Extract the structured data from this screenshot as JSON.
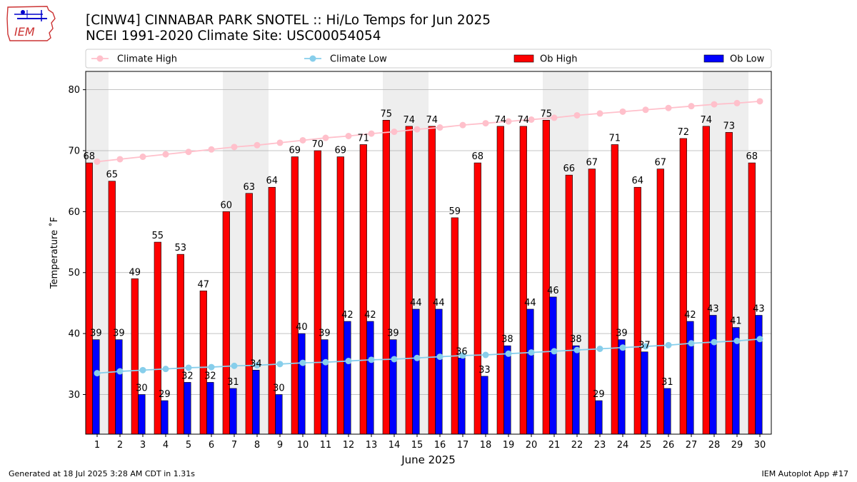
{
  "header": {
    "title": "[CINW4] CINNABAR PARK SNOTEL :: Hi/Lo Temps for Jun 2025",
    "subtitle": "NCEI 1991-2020 Climate Site: USC00054054",
    "logo_text": "IEM"
  },
  "footer": {
    "generated": "Generated at 18 Jul 2025 3:28 AM CDT in 1.31s",
    "app": "IEM Autoplot App #17"
  },
  "chart_data": {
    "type": "bar",
    "xlabel": "June 2025",
    "ylabel": "Temperature ˚F",
    "ylim": [
      23.5,
      83
    ],
    "yticks": [
      30,
      40,
      50,
      60,
      70,
      80
    ],
    "grid": true,
    "legend_position": "top",
    "categories": [
      "1",
      "2",
      "3",
      "4",
      "5",
      "6",
      "7",
      "8",
      "9",
      "10",
      "11",
      "12",
      "13",
      "14",
      "15",
      "16",
      "17",
      "18",
      "19",
      "20",
      "21",
      "22",
      "23",
      "24",
      "25",
      "26",
      "27",
      "28",
      "29",
      "30"
    ],
    "weekend_days": [
      1,
      7,
      8,
      14,
      15,
      21,
      22,
      28,
      29
    ],
    "series": [
      {
        "name": "Climate High",
        "kind": "line",
        "color": "#ffc0cb",
        "values": [
          68.2,
          68.6,
          69.0,
          69.4,
          69.8,
          70.2,
          70.6,
          70.9,
          71.3,
          71.7,
          72.1,
          72.4,
          72.8,
          73.1,
          73.5,
          73.8,
          74.2,
          74.5,
          74.8,
          75.1,
          75.4,
          75.8,
          76.1,
          76.4,
          76.7,
          77.0,
          77.3,
          77.6,
          77.8,
          78.1
        ]
      },
      {
        "name": "Climate Low",
        "kind": "line",
        "color": "#87ceeb",
        "values": [
          33.5,
          33.8,
          34.0,
          34.2,
          34.4,
          34.5,
          34.7,
          34.8,
          35.0,
          35.2,
          35.3,
          35.5,
          35.7,
          35.8,
          36.0,
          36.2,
          36.4,
          36.5,
          36.7,
          36.9,
          37.1,
          37.3,
          37.5,
          37.7,
          37.9,
          38.1,
          38.4,
          38.6,
          38.8,
          39.1
        ]
      },
      {
        "name": "Ob High",
        "kind": "bar",
        "color": "#ff0000",
        "values": [
          68,
          65,
          49,
          55,
          53,
          47,
          60,
          63,
          64,
          69,
          70,
          69,
          71,
          75,
          74,
          74,
          59,
          68,
          74,
          74,
          75,
          66,
          67,
          71,
          64,
          67,
          72,
          74,
          73,
          68
        ],
        "labels": [
          "68",
          "65",
          "49",
          "55",
          "53",
          "47",
          "60",
          "63",
          "64",
          "69",
          "70",
          "69",
          "71",
          "75",
          "74",
          "74",
          "59",
          "68",
          "74",
          "74",
          "75",
          "66",
          "67",
          "71",
          "64",
          "67",
          "72",
          "74",
          "73",
          "68"
        ]
      },
      {
        "name": "Ob Low",
        "kind": "bar",
        "color": "#0000ff",
        "values": [
          39,
          39,
          30,
          29,
          32,
          32,
          31,
          34,
          30,
          40,
          39,
          42,
          42,
          39,
          44,
          44,
          36,
          33,
          38,
          44,
          46,
          38,
          29,
          39,
          37,
          31,
          42,
          43,
          41,
          43
        ],
        "labels": [
          "39",
          "39",
          "30",
          "29",
          "32",
          "32",
          "31",
          "34",
          "30",
          "40",
          "39",
          "42",
          "42",
          "39",
          "44",
          "44",
          "36",
          "33",
          "38",
          "44",
          "46",
          "38",
          "29",
          "39",
          "37",
          "31",
          "42",
          "43",
          "41",
          "43"
        ]
      }
    ]
  }
}
